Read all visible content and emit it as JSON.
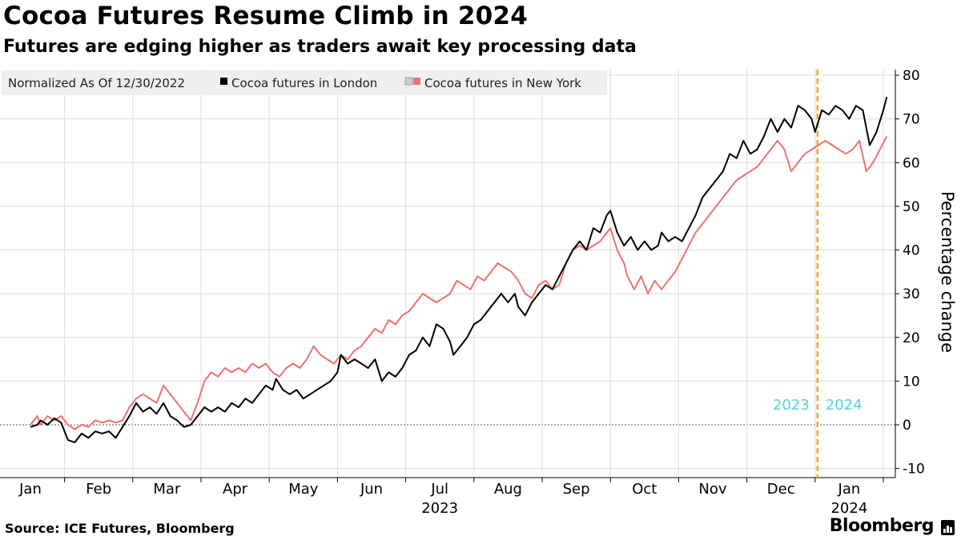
{
  "header": {
    "title": "Cocoa Futures Resume Climb in 2024",
    "subtitle": "Futures are edging higher as traders await key processing data"
  },
  "footer": {
    "source": "Source: ICE Futures, Bloomberg",
    "brand": "Bloomberg"
  },
  "chart_data": {
    "type": "line",
    "title": "Cocoa Futures Resume Climb in 2024",
    "subtitle": "Futures are edging higher as traders await key processing data",
    "ylabel": "Percentage change",
    "xlabel": "",
    "ylim": [
      -12,
      82
    ],
    "yticks": [
      80,
      70,
      60,
      50,
      40,
      30,
      20,
      10,
      0,
      -10
    ],
    "x_month_labels": [
      "Jan",
      "Feb",
      "Mar",
      "Apr",
      "May",
      "Jun",
      "Jul",
      "Aug",
      "Sep",
      "Oct",
      "Nov",
      "Dec",
      "Jan"
    ],
    "x_year_labels": [
      {
        "label": "2023",
        "month_index": 6
      },
      {
        "label": "2024",
        "month_index": 12
      }
    ],
    "legend_note": "Normalized As Of 12/30/2022",
    "legend_position": "top-left",
    "grid": true,
    "annotation": {
      "divider_at_month": 12,
      "divider_color": "#f5a623",
      "left_label": "2023",
      "right_label": "2024",
      "label_color": "#4dd6d6"
    },
    "series": [
      {
        "name": "Cocoa futures in London",
        "color": "#000000",
        "points": [
          [
            0,
            -0.5
          ],
          [
            0.1,
            0
          ],
          [
            0.15,
            1
          ],
          [
            0.25,
            0
          ],
          [
            0.35,
            1.5
          ],
          [
            0.45,
            0.5
          ],
          [
            0.55,
            -3.5
          ],
          [
            0.65,
            -4
          ],
          [
            0.75,
            -2
          ],
          [
            0.85,
            -3
          ],
          [
            0.95,
            -1.5
          ],
          [
            1.05,
            -2
          ],
          [
            1.15,
            -1.5
          ],
          [
            1.25,
            -3
          ],
          [
            1.35,
            -0.5
          ],
          [
            1.45,
            2
          ],
          [
            1.55,
            5
          ],
          [
            1.65,
            3
          ],
          [
            1.75,
            4
          ],
          [
            1.85,
            2.5
          ],
          [
            1.95,
            5
          ],
          [
            2.05,
            2
          ],
          [
            2.15,
            1
          ],
          [
            2.25,
            -0.5
          ],
          [
            2.35,
            0
          ],
          [
            2.45,
            2
          ],
          [
            2.55,
            4
          ],
          [
            2.65,
            3
          ],
          [
            2.75,
            4
          ],
          [
            2.85,
            3
          ],
          [
            2.95,
            5
          ],
          [
            3.05,
            4
          ],
          [
            3.15,
            6
          ],
          [
            3.25,
            5
          ],
          [
            3.35,
            7
          ],
          [
            3.45,
            9
          ],
          [
            3.55,
            8
          ],
          [
            3.6,
            10.5
          ],
          [
            3.7,
            8
          ],
          [
            3.8,
            7
          ],
          [
            3.9,
            8
          ],
          [
            4.0,
            6
          ],
          [
            4.1,
            7
          ],
          [
            4.2,
            8
          ],
          [
            4.3,
            9
          ],
          [
            4.4,
            10
          ],
          [
            4.5,
            12
          ],
          [
            4.55,
            16
          ],
          [
            4.65,
            14
          ],
          [
            4.75,
            15
          ],
          [
            4.85,
            14
          ],
          [
            4.95,
            13
          ],
          [
            5.05,
            15
          ],
          [
            5.15,
            10
          ],
          [
            5.25,
            12
          ],
          [
            5.35,
            11
          ],
          [
            5.45,
            13
          ],
          [
            5.55,
            16
          ],
          [
            5.65,
            17
          ],
          [
            5.75,
            20
          ],
          [
            5.85,
            18
          ],
          [
            5.95,
            23
          ],
          [
            6.05,
            22
          ],
          [
            6.15,
            19
          ],
          [
            6.2,
            16
          ],
          [
            6.3,
            18
          ],
          [
            6.4,
            20
          ],
          [
            6.5,
            23
          ],
          [
            6.6,
            24
          ],
          [
            6.7,
            26
          ],
          [
            6.8,
            28
          ],
          [
            6.9,
            30
          ],
          [
            7.0,
            28
          ],
          [
            7.1,
            30
          ],
          [
            7.15,
            27
          ],
          [
            7.25,
            25
          ],
          [
            7.35,
            28
          ],
          [
            7.45,
            30
          ],
          [
            7.55,
            32
          ],
          [
            7.65,
            31
          ],
          [
            7.75,
            34
          ],
          [
            7.85,
            37
          ],
          [
            7.95,
            40
          ],
          [
            8.05,
            42
          ],
          [
            8.15,
            40
          ],
          [
            8.25,
            45
          ],
          [
            8.35,
            44
          ],
          [
            8.45,
            48
          ],
          [
            8.5,
            49
          ],
          [
            8.6,
            44
          ],
          [
            8.7,
            41
          ],
          [
            8.8,
            43
          ],
          [
            8.9,
            40
          ],
          [
            9.0,
            42
          ],
          [
            9.1,
            40
          ],
          [
            9.2,
            41
          ],
          [
            9.25,
            44
          ],
          [
            9.35,
            42
          ],
          [
            9.45,
            43
          ],
          [
            9.55,
            42
          ],
          [
            9.65,
            45
          ],
          [
            9.75,
            48
          ],
          [
            9.85,
            52
          ],
          [
            9.95,
            54
          ],
          [
            10.05,
            56
          ],
          [
            10.15,
            58
          ],
          [
            10.25,
            62
          ],
          [
            10.35,
            61
          ],
          [
            10.45,
            65
          ],
          [
            10.55,
            62
          ],
          [
            10.65,
            63
          ],
          [
            10.75,
            66
          ],
          [
            10.85,
            70
          ],
          [
            10.95,
            67
          ],
          [
            11.05,
            70
          ],
          [
            11.15,
            68
          ],
          [
            11.25,
            73
          ],
          [
            11.35,
            72
          ],
          [
            11.45,
            70
          ],
          [
            11.5,
            67
          ],
          [
            11.6,
            72
          ],
          [
            11.7,
            71
          ],
          [
            11.8,
            73
          ],
          [
            11.9,
            72
          ],
          [
            12.0,
            70
          ],
          [
            12.1,
            73
          ],
          [
            12.2,
            72
          ],
          [
            12.3,
            64
          ],
          [
            12.4,
            67
          ],
          [
            12.5,
            72
          ],
          [
            12.55,
            75
          ]
        ]
      },
      {
        "name": "Cocoa futures in New York",
        "color": "#f07070",
        "points": [
          [
            0,
            0
          ],
          [
            0.1,
            2
          ],
          [
            0.15,
            0
          ],
          [
            0.25,
            2
          ],
          [
            0.35,
            1
          ],
          [
            0.45,
            2
          ],
          [
            0.55,
            0
          ],
          [
            0.65,
            -1
          ],
          [
            0.75,
            0
          ],
          [
            0.85,
            -0.5
          ],
          [
            0.95,
            1
          ],
          [
            1.05,
            0.5
          ],
          [
            1.15,
            1
          ],
          [
            1.25,
            0.5
          ],
          [
            1.35,
            1
          ],
          [
            1.45,
            4
          ],
          [
            1.55,
            6
          ],
          [
            1.65,
            7
          ],
          [
            1.75,
            6
          ],
          [
            1.85,
            5
          ],
          [
            1.95,
            9
          ],
          [
            2.05,
            7
          ],
          [
            2.15,
            5
          ],
          [
            2.25,
            3
          ],
          [
            2.35,
            1
          ],
          [
            2.45,
            5
          ],
          [
            2.55,
            10
          ],
          [
            2.65,
            12
          ],
          [
            2.75,
            11
          ],
          [
            2.85,
            13
          ],
          [
            2.95,
            12
          ],
          [
            3.05,
            13
          ],
          [
            3.15,
            12
          ],
          [
            3.25,
            14
          ],
          [
            3.35,
            13
          ],
          [
            3.45,
            14
          ],
          [
            3.55,
            12
          ],
          [
            3.65,
            11
          ],
          [
            3.75,
            13
          ],
          [
            3.85,
            14
          ],
          [
            3.95,
            13
          ],
          [
            4.05,
            15
          ],
          [
            4.15,
            18
          ],
          [
            4.25,
            16
          ],
          [
            4.35,
            15
          ],
          [
            4.45,
            14
          ],
          [
            4.55,
            16
          ],
          [
            4.65,
            15
          ],
          [
            4.75,
            17
          ],
          [
            4.85,
            18
          ],
          [
            4.95,
            20
          ],
          [
            5.05,
            22
          ],
          [
            5.15,
            21
          ],
          [
            5.25,
            24
          ],
          [
            5.35,
            23
          ],
          [
            5.45,
            25
          ],
          [
            5.55,
            26
          ],
          [
            5.65,
            28
          ],
          [
            5.75,
            30
          ],
          [
            5.85,
            29
          ],
          [
            5.95,
            28
          ],
          [
            6.05,
            29
          ],
          [
            6.15,
            30
          ],
          [
            6.25,
            33
          ],
          [
            6.35,
            32
          ],
          [
            6.45,
            31
          ],
          [
            6.55,
            34
          ],
          [
            6.65,
            33
          ],
          [
            6.75,
            35
          ],
          [
            6.85,
            37
          ],
          [
            6.95,
            36
          ],
          [
            7.05,
            35
          ],
          [
            7.15,
            33
          ],
          [
            7.25,
            30
          ],
          [
            7.35,
            29
          ],
          [
            7.45,
            32
          ],
          [
            7.55,
            33
          ],
          [
            7.65,
            31
          ],
          [
            7.75,
            32
          ],
          [
            7.85,
            37
          ],
          [
            7.95,
            40
          ],
          [
            8.05,
            41
          ],
          [
            8.15,
            40
          ],
          [
            8.25,
            41
          ],
          [
            8.35,
            42
          ],
          [
            8.45,
            44
          ],
          [
            8.5,
            45
          ],
          [
            8.6,
            40
          ],
          [
            8.7,
            37
          ],
          [
            8.75,
            34
          ],
          [
            8.85,
            31
          ],
          [
            8.95,
            34
          ],
          [
            9.05,
            30
          ],
          [
            9.15,
            33
          ],
          [
            9.25,
            31
          ],
          [
            9.35,
            33
          ],
          [
            9.45,
            35
          ],
          [
            9.55,
            38
          ],
          [
            9.65,
            41
          ],
          [
            9.75,
            44
          ],
          [
            9.85,
            46
          ],
          [
            9.95,
            48
          ],
          [
            10.05,
            50
          ],
          [
            10.15,
            52
          ],
          [
            10.25,
            54
          ],
          [
            10.35,
            56
          ],
          [
            10.45,
            57
          ],
          [
            10.55,
            58
          ],
          [
            10.65,
            59
          ],
          [
            10.75,
            61
          ],
          [
            10.85,
            63
          ],
          [
            10.95,
            65
          ],
          [
            11.05,
            63
          ],
          [
            11.15,
            58
          ],
          [
            11.25,
            60
          ],
          [
            11.35,
            62
          ],
          [
            11.45,
            63
          ],
          [
            11.55,
            64
          ],
          [
            11.65,
            65
          ],
          [
            11.75,
            64
          ],
          [
            11.85,
            63
          ],
          [
            11.95,
            62
          ],
          [
            12.05,
            63
          ],
          [
            12.15,
            65
          ],
          [
            12.25,
            58
          ],
          [
            12.35,
            60
          ],
          [
            12.45,
            63
          ],
          [
            12.55,
            66
          ]
        ]
      }
    ]
  }
}
